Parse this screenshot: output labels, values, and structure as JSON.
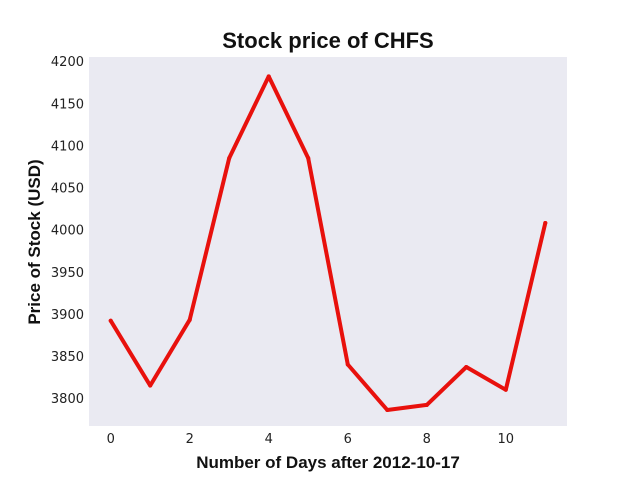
{
  "chart_data": {
    "type": "line",
    "title": "Stock price of CHFS",
    "xlabel": "Number of Days after 2012-10-17",
    "ylabel": "Price of Stock (USD)",
    "x": [
      0,
      1,
      2,
      3,
      4,
      5,
      6,
      7,
      8,
      9,
      10,
      11
    ],
    "series": [
      {
        "values": [
          3892,
          3815,
          3893,
          4085,
          4182,
          4085,
          3840,
          3786,
          3792,
          3837,
          3810,
          4008
        ]
      }
    ],
    "xlim": [
      -0.55,
      11.55
    ],
    "ylim": [
      3767,
      4205
    ],
    "xticks": [
      0,
      2,
      4,
      6,
      8,
      10
    ],
    "yticks": [
      3800,
      3850,
      3900,
      3950,
      4000,
      4050,
      4100,
      4150,
      4200
    ],
    "grid": false,
    "legend": "none",
    "line_color": "#e8110d",
    "background_color": "#eaeaf2"
  }
}
